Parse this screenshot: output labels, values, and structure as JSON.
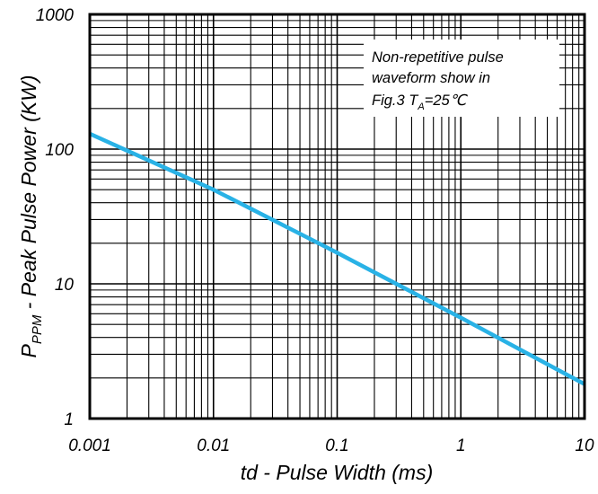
{
  "chart_data": {
    "type": "line",
    "xscale": "log",
    "yscale": "log",
    "xlim": [
      0.001,
      10
    ],
    "ylim": [
      1,
      1000
    ],
    "grid": true,
    "xlabel": "td - Pulse Width (ms)",
    "ylabel": {
      "prefix": "P",
      "subscript": "PPM",
      "suffix": " - Peak Pulse Power  (KW)"
    },
    "x_ticks": [
      "0.001",
      "0.01",
      "0.1",
      "1",
      "10"
    ],
    "y_ticks": [
      "1",
      "10",
      "100",
      "1000"
    ],
    "series": [
      {
        "color": "#29b2e6",
        "x": [
          0.001,
          0.01,
          0.1,
          1,
          10
        ],
        "y": [
          130,
          50,
          17,
          5.6,
          1.8
        ]
      }
    ],
    "annotation": {
      "lines": [
        "Non-repetitive pulse",
        "waveform show in"
      ],
      "line3_prefix": "Fig.3  T",
      "line3_sub": "A",
      "line3_suffix": "=25℃"
    }
  }
}
